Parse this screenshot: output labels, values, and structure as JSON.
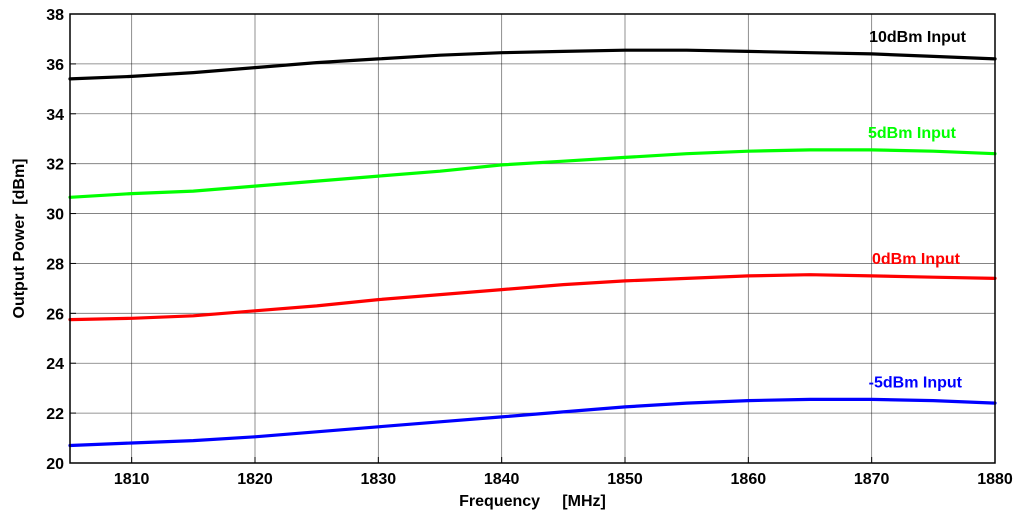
{
  "chart_data": {
    "type": "line",
    "title": "",
    "xlabel": "Frequency     [MHz]",
    "ylabel": "Output Power  [dBm]",
    "xlim": [
      1805,
      1880
    ],
    "ylim": [
      20,
      38
    ],
    "xticks": [
      1810,
      1820,
      1830,
      1840,
      1850,
      1860,
      1870,
      1880
    ],
    "yticks": [
      20,
      22,
      24,
      26,
      28,
      30,
      32,
      34,
      36,
      38
    ],
    "grid": true,
    "x": [
      1805,
      1810,
      1815,
      1820,
      1825,
      1830,
      1835,
      1840,
      1845,
      1850,
      1855,
      1860,
      1865,
      1870,
      1875,
      1880
    ],
    "series": [
      {
        "name": "10dBm Input",
        "color": "#000000",
        "values": [
          35.4,
          35.5,
          35.65,
          35.85,
          36.05,
          36.2,
          36.35,
          36.45,
          36.5,
          36.55,
          36.55,
          36.5,
          36.45,
          36.4,
          36.3,
          36.2
        ]
      },
      {
        "name": "5dBm Input",
        "color": "#00ff00",
        "values": [
          30.65,
          30.8,
          30.9,
          31.1,
          31.3,
          31.5,
          31.7,
          31.95,
          32.1,
          32.25,
          32.4,
          32.5,
          32.55,
          32.55,
          32.5,
          32.4
        ]
      },
      {
        "name": "0dBm Input",
        "color": "#ff0000",
        "values": [
          25.75,
          25.8,
          25.9,
          26.1,
          26.3,
          26.55,
          26.75,
          26.95,
          27.15,
          27.3,
          27.4,
          27.5,
          27.55,
          27.5,
          27.45,
          27.4
        ]
      },
      {
        "name": "-5dBm Input",
        "color": "#0000ff",
        "values": [
          20.7,
          20.8,
          20.9,
          21.05,
          21.25,
          21.45,
          21.65,
          21.85,
          22.05,
          22.25,
          22.4,
          22.5,
          22.55,
          22.55,
          22.5,
          22.4
        ]
      }
    ]
  }
}
